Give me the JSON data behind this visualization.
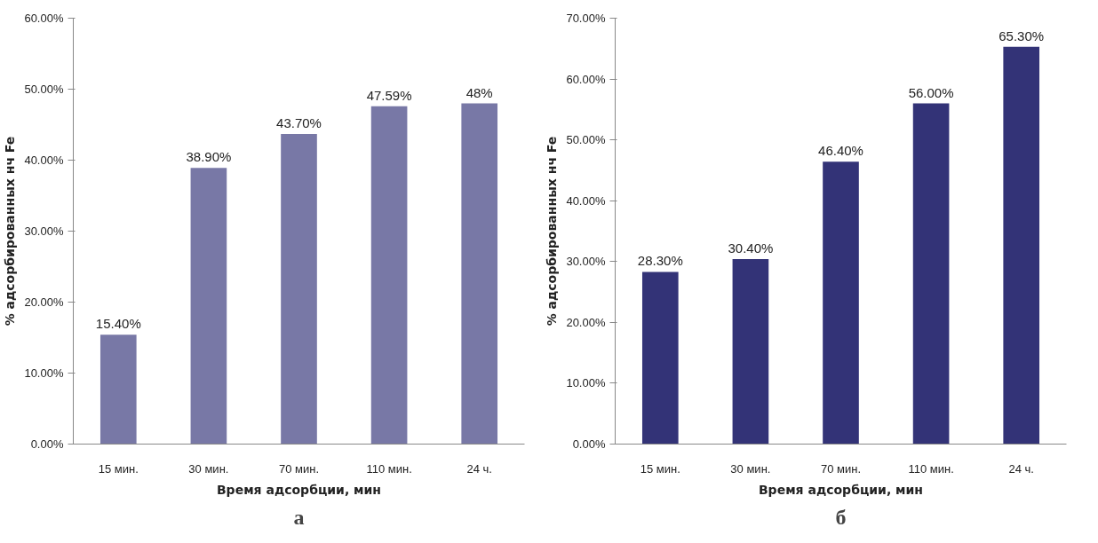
{
  "chart_data": [
    {
      "type": "bar",
      "xlabel": "Время адсорбции, мин",
      "ylabel": "% адсорбированных нч Fe",
      "categories": [
        "15 мин.",
        "30 мин.",
        "70 мин.",
        "110 мин.",
        "24 ч."
      ],
      "values": [
        15.4,
        38.9,
        43.7,
        47.59,
        48
      ],
      "value_labels": [
        "15.40%",
        "38.90%",
        "43.70%",
        "47.59%",
        "48%"
      ],
      "color": "#7878a6",
      "ylim": [
        0,
        60
      ],
      "yticks": [
        {
          "value": 0,
          "label": "0.00%"
        },
        {
          "value": 10,
          "label": "10.00%"
        },
        {
          "value": 20,
          "label": "20.00%"
        },
        {
          "value": 30,
          "label": "30.00%"
        },
        {
          "value": 40,
          "label": "40.00%"
        },
        {
          "value": 50,
          "label": "50.00%"
        },
        {
          "value": 60,
          "label": "60.00%"
        }
      ],
      "annotations": [
        "а"
      ]
    },
    {
      "type": "bar",
      "xlabel": "Время адсорбции, мин",
      "ylabel": "% адсорбированных нч Fe",
      "categories": [
        "15 мин.",
        "30 мин.",
        "70 мин.",
        "110 мин.",
        "24 ч."
      ],
      "values": [
        28.3,
        30.4,
        46.4,
        56.0,
        65.3
      ],
      "value_labels": [
        "28.30%",
        "30.40%",
        "46.40%",
        "56.00%",
        "65.30%"
      ],
      "color": "#333377",
      "ylim": [
        0,
        70
      ],
      "yticks": [
        {
          "value": 0,
          "label": "0.00%"
        },
        {
          "value": 10,
          "label": "10.00%"
        },
        {
          "value": 20,
          "label": "20.00%"
        },
        {
          "value": 30,
          "label": "30.00%"
        },
        {
          "value": 40,
          "label": "40.00%"
        },
        {
          "value": 50,
          "label": "50.00%"
        },
        {
          "value": 60,
          "label": "60.00%"
        },
        {
          "value": 70,
          "label": "70.00%"
        }
      ],
      "annotations": [
        "б"
      ]
    }
  ]
}
